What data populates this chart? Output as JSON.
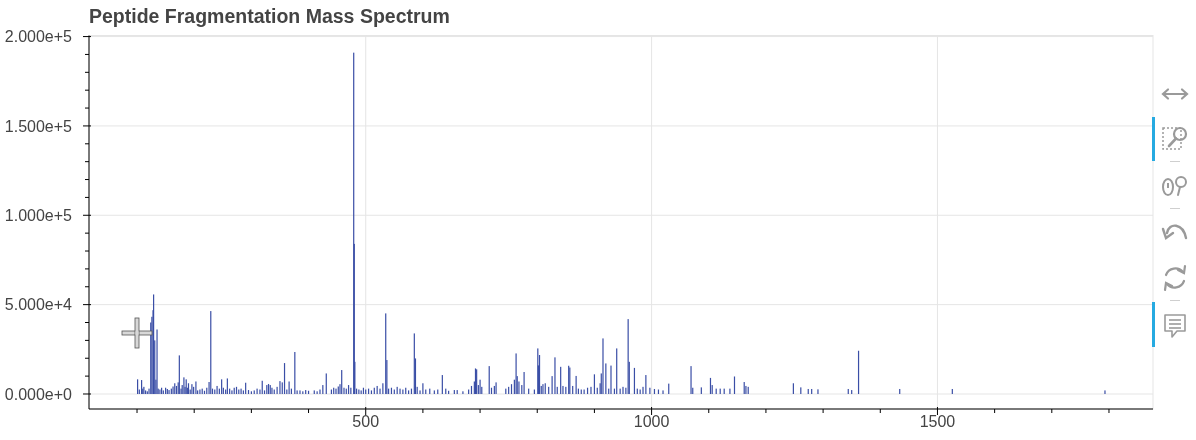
{
  "chart_data": {
    "type": "bar",
    "title": "Peptide Fragmentation Mass Spectrum",
    "color": "#3a4ea6",
    "grid": true,
    "xlim": [
      16,
      1877
    ],
    "ylim": [
      -8400,
      200600
    ],
    "xticks": [
      {
        "value": 100,
        "label": null
      },
      {
        "value": 200,
        "label": null
      },
      {
        "value": 300,
        "label": null
      },
      {
        "value": 400,
        "label": null
      },
      500,
      {
        "value": 600,
        "label": null
      },
      {
        "value": 700,
        "label": null
      },
      {
        "value": 800,
        "label": null
      },
      {
        "value": 900,
        "label": null
      },
      1000,
      {
        "value": 1100,
        "label": null
      },
      {
        "value": 1200,
        "label": null
      },
      {
        "value": 1300,
        "label": null
      },
      {
        "value": 1400,
        "label": null
      },
      1500,
      {
        "value": 1600,
        "label": null
      },
      {
        "value": 1700,
        "label": null
      },
      {
        "value": 1800,
        "label": null
      }
    ],
    "yticks": [
      {
        "value": 0,
        "label": "0.000e+0"
      },
      {
        "value": 10000,
        "label": null
      },
      {
        "value": 20000,
        "label": null
      },
      {
        "value": 30000,
        "label": null
      },
      {
        "value": 40000,
        "label": null
      },
      {
        "value": 50000,
        "label": "5.000e+4"
      },
      {
        "value": 60000,
        "label": null
      },
      {
        "value": 70000,
        "label": null
      },
      {
        "value": 80000,
        "label": null
      },
      {
        "value": 90000,
        "label": null
      },
      {
        "value": 100000,
        "label": "1.000e+5"
      },
      {
        "value": 110000,
        "label": null
      },
      {
        "value": 120000,
        "label": null
      },
      {
        "value": 130000,
        "label": null
      },
      {
        "value": 140000,
        "label": null
      },
      {
        "value": 150000,
        "label": "1.500e+5"
      },
      {
        "value": 160000,
        "label": null
      },
      {
        "value": 170000,
        "label": null
      },
      {
        "value": 180000,
        "label": null
      },
      {
        "value": 190000,
        "label": null
      },
      {
        "value": 200000,
        "label": "2.000e+5"
      }
    ],
    "x": [
      101,
      104,
      108,
      110,
      112,
      115,
      118,
      121,
      124,
      126,
      128,
      129,
      131,
      133,
      135,
      137,
      140,
      143,
      146,
      150,
      153,
      156,
      160,
      163,
      166,
      169,
      172,
      174,
      177,
      179,
      182,
      184,
      186,
      188,
      190,
      193,
      196,
      199,
      203,
      206,
      210,
      214,
      218,
      222,
      226,
      229,
      232,
      236,
      240,
      244,
      248,
      251,
      255,
      258,
      262,
      266,
      270,
      274,
      278,
      282,
      286,
      290,
      295,
      300,
      305,
      310,
      315,
      319,
      323,
      327,
      330,
      333,
      336,
      340,
      345,
      350,
      354,
      358,
      362,
      366,
      370,
      376,
      380,
      385,
      390,
      395,
      400,
      410,
      415,
      420,
      425,
      431,
      440,
      444,
      448,
      452,
      455,
      458,
      462,
      466,
      470,
      474,
      479,
      480,
      481,
      484,
      488,
      492,
      496,
      500,
      505,
      510,
      515,
      520,
      525,
      530,
      535,
      537,
      540,
      545,
      550,
      555,
      560,
      565,
      570,
      575,
      580,
      585,
      587,
      590,
      595,
      600,
      605,
      612,
      620,
      626,
      634,
      640,
      645,
      655,
      660,
      670,
      680,
      685,
      690,
      692,
      694,
      697,
      700,
      703,
      716,
      720,
      725,
      728,
      745,
      750,
      755,
      760,
      763,
      765,
      768,
      773,
      777,
      785,
      795,
      801,
      802,
      804,
      807,
      810,
      814,
      820,
      826,
      831,
      835,
      841,
      845,
      850,
      855,
      857,
      862,
      868,
      872,
      877,
      882,
      888,
      894,
      900,
      905,
      910,
      912,
      915,
      920,
      925,
      929,
      935,
      939,
      945,
      950,
      955,
      959,
      961,
      970,
      975,
      980,
      985,
      990,
      997,
      1005,
      1012,
      1020,
      1030,
      1069,
      1072,
      1087,
      1103,
      1106,
      1113,
      1120,
      1127,
      1137,
      1145,
      1162,
      1165,
      1169,
      1248,
      1261,
      1274,
      1280,
      1291,
      1344,
      1350,
      1362,
      1434,
      1526,
      1793
    ],
    "values": [
      8200,
      2500,
      7800,
      3000,
      4000,
      2000,
      1500,
      3000,
      40000,
      43200,
      46900,
      55700,
      30000,
      8000,
      36100,
      3000,
      2500,
      3500,
      2000,
      3500,
      2800,
      2200,
      3000,
      4200,
      6000,
      4500,
      6500,
      21600,
      3000,
      5000,
      9300,
      4000,
      8200,
      3500,
      6000,
      2500,
      5500,
      4000,
      7000,
      2000,
      2500,
      3000,
      1800,
      3500,
      6700,
      46400,
      3000,
      2500,
      4500,
      3000,
      8200,
      3500,
      2500,
      8700,
      3000,
      2000,
      3500,
      4000,
      2500,
      3000,
      2000,
      6300,
      2200,
      1500,
      2000,
      3000,
      2500,
      7400,
      2000,
      5000,
      5600,
      5000,
      3500,
      2500,
      4000,
      7200,
      6500,
      17300,
      2500,
      7000,
      3000,
      23500,
      2000,
      2000,
      1500,
      2200,
      1800,
      2000,
      1500,
      2500,
      5000,
      11500,
      2500,
      3500,
      3000,
      4200,
      5500,
      13400,
      3500,
      3000,
      5000,
      3500,
      191000,
      84000,
      18000,
      3000,
      2500,
      2000,
      3500,
      2500,
      3000,
      2000,
      3500,
      4500,
      3000,
      6000,
      45100,
      19000,
      3000,
      3500,
      2500,
      4000,
      3000,
      2500,
      3500,
      2000,
      3000,
      33900,
      19900,
      4000,
      2000,
      6000,
      2500,
      3000,
      2000,
      2500,
      10600,
      3000,
      1800,
      2200,
      2200,
      1500,
      2500,
      4500,
      7000,
      14300,
      13800,
      5000,
      8000,
      4000,
      15600,
      3500,
      4500,
      6500,
      3000,
      4000,
      5500,
      8000,
      22700,
      10000,
      7000,
      5000,
      12300,
      3000,
      2500,
      25500,
      16000,
      21800,
      4500,
      5500,
      6000,
      4000,
      10000,
      20500,
      4000,
      15200,
      4500,
      4000,
      15800,
      14800,
      4500,
      10100,
      3000,
      2500,
      2500,
      3500,
      4000,
      11000,
      3500,
      6000,
      11500,
      31100,
      17100,
      3000,
      15900,
      3000,
      25500,
      3000,
      4000,
      3500,
      41900,
      18000,
      14600,
      3000,
      2500,
      4000,
      10600,
      3500,
      2800,
      2500,
      2000,
      5800,
      15600,
      3500,
      3700,
      9000,
      5000,
      3000,
      3000,
      3000,
      3000,
      9800,
      6700,
      4500,
      4000,
      6000,
      3700,
      2800,
      2800,
      2600,
      2800,
      2200,
      24200,
      2800,
      2800,
      2000
    ]
  }
}
